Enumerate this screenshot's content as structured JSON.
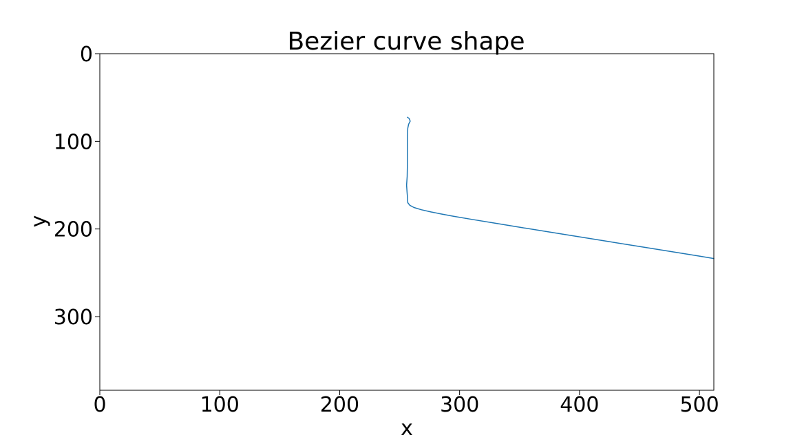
{
  "chart_data": {
    "type": "line",
    "title": "Bezier curve shape",
    "xlabel": "x",
    "ylabel": "y",
    "xlim": [
      0,
      512
    ],
    "ylim": [
      384,
      0
    ],
    "y_inverted": true,
    "grid": false,
    "legend": "none",
    "x_ticks": [
      {
        "value": 0,
        "label": "0"
      },
      {
        "value": 100,
        "label": "100"
      },
      {
        "value": 200,
        "label": "200"
      },
      {
        "value": 300,
        "label": "300"
      },
      {
        "value": 400,
        "label": "400"
      },
      {
        "value": 500,
        "label": "500"
      }
    ],
    "y_ticks": [
      {
        "value": 0,
        "label": "0"
      },
      {
        "value": 100,
        "label": "100"
      },
      {
        "value": 200,
        "label": "200"
      },
      {
        "value": 300,
        "label": "300"
      }
    ],
    "series": [
      {
        "color": "#1f77b4",
        "points": [
          [
            256.5,
            72.5
          ],
          [
            258.0,
            74.0
          ],
          [
            258.8,
            77.0
          ],
          [
            257.5,
            80.5
          ],
          [
            256.8,
            85.0
          ],
          [
            256.5,
            95.0
          ],
          [
            256.5,
            110.0
          ],
          [
            256.5,
            125.0
          ],
          [
            256.3,
            140.0
          ],
          [
            255.8,
            150.0
          ],
          [
            256.2,
            158.0
          ],
          [
            256.6,
            165.0
          ],
          [
            256.8,
            170.0
          ],
          [
            258.5,
            173.0
          ],
          [
            262.0,
            175.5
          ],
          [
            268.0,
            178.0
          ],
          [
            276.0,
            180.5
          ],
          [
            285.0,
            183.0
          ],
          [
            295.0,
            185.5
          ],
          [
            310.0,
            189.0
          ],
          [
            330.0,
            193.5
          ],
          [
            350.0,
            198.0
          ],
          [
            375.0,
            203.5
          ],
          [
            400.0,
            209.0
          ],
          [
            425.0,
            214.5
          ],
          [
            450.0,
            220.0
          ],
          [
            475.0,
            225.5
          ],
          [
            500.0,
            231.0
          ],
          [
            512.0,
            233.7
          ]
        ]
      }
    ]
  }
}
